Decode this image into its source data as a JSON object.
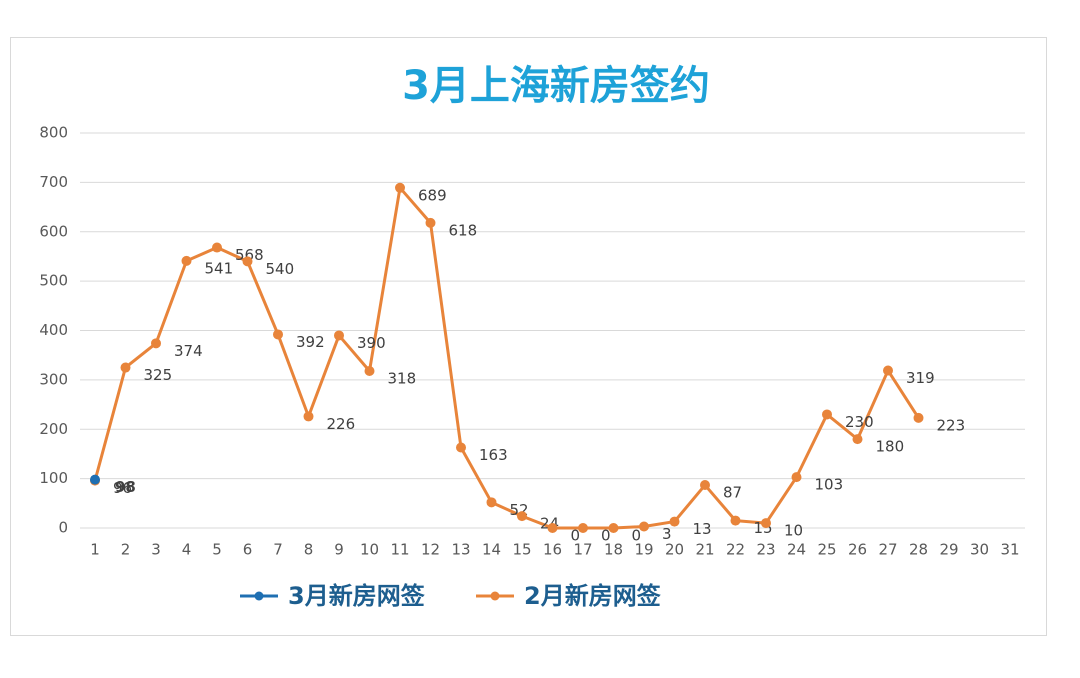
{
  "chart_data": {
    "type": "line",
    "title": "3月上海新房签约",
    "categories": [
      "1",
      "2",
      "3",
      "4",
      "5",
      "6",
      "7",
      "8",
      "9",
      "10",
      "11",
      "12",
      "13",
      "14",
      "15",
      "16",
      "17",
      "18",
      "19",
      "20",
      "21",
      "22",
      "23",
      "24",
      "25",
      "26",
      "27",
      "28",
      "29",
      "30",
      "31"
    ],
    "series": [
      {
        "name": "3月新房网签",
        "color": "#1f6fb2",
        "label_color": "#2e7d4f",
        "values": [
          98,
          null,
          null,
          null,
          null,
          null,
          null,
          null,
          null,
          null,
          null,
          null,
          null,
          null,
          null,
          null,
          null,
          null,
          null,
          null,
          null,
          null,
          null,
          null,
          null,
          null,
          null,
          null,
          null,
          null,
          null
        ]
      },
      {
        "name": "2月新房网签",
        "color": "#e8843a",
        "values": [
          96,
          325,
          374,
          541,
          568,
          540,
          392,
          226,
          390,
          318,
          689,
          618,
          163,
          52,
          24,
          0,
          0,
          0,
          3,
          13,
          87,
          15,
          10,
          103,
          230,
          180,
          319,
          223,
          null,
          null,
          null
        ]
      }
    ],
    "ylim": [
      0,
      800
    ],
    "yticks": [
      0,
      100,
      200,
      300,
      400,
      500,
      600,
      700,
      800
    ],
    "grid": true,
    "legend": "bottom"
  }
}
